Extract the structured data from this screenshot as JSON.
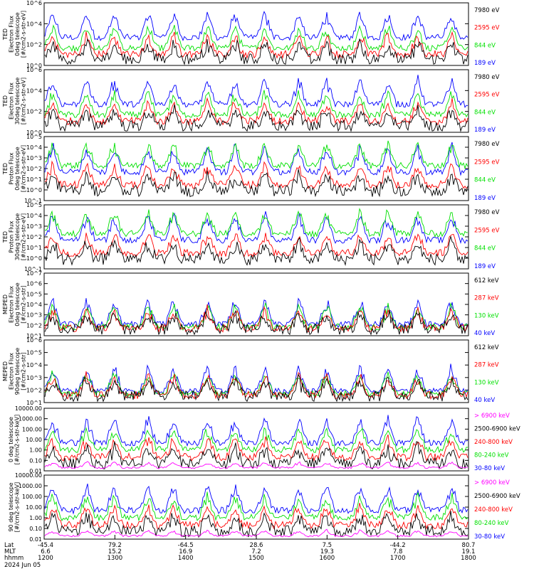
{
  "colors": {
    "blue": "#0000ff",
    "red": "#ff0000",
    "green": "#00e000",
    "black": "#000000",
    "magenta": "#ff00ff"
  },
  "chart_data": [
    {
      "type": "line",
      "ylabel_lines": [
        "TED",
        "Electron Flux",
        "0deg telescope",
        "[#/cm2-s-str-eV]"
      ],
      "ytick_labels": [
        "10^0",
        "10^2",
        "10^4",
        "10^6"
      ],
      "series": [
        {
          "name": "7980 eV",
          "color": "black"
        },
        {
          "name": "2595 eV",
          "color": "red"
        },
        {
          "name": "844 eV",
          "color": "green"
        },
        {
          "name": "189 eV",
          "color": "blue"
        }
      ]
    },
    {
      "type": "line",
      "ylabel_lines": [
        "TED",
        "Electron Flux",
        "30deg telescope",
        "[#/cm2-s-str-eV]"
      ],
      "ytick_labels": [
        "10^0",
        "10^2",
        "10^4",
        "10^6"
      ],
      "series": [
        {
          "name": "7980 eV",
          "color": "black"
        },
        {
          "name": "2595 eV",
          "color": "red"
        },
        {
          "name": "844 eV",
          "color": "green"
        },
        {
          "name": "189 eV",
          "color": "blue"
        }
      ]
    },
    {
      "type": "line",
      "ylabel_lines": [
        "TED",
        "Proton Flux",
        "0deg telescope",
        "[#/cm2-s-str-eV]"
      ],
      "ytick_labels": [
        "10^-1",
        "10^0",
        "10^1",
        "10^2",
        "10^3",
        "10^4",
        "10^5"
      ],
      "series": [
        {
          "name": "7980 eV",
          "color": "black"
        },
        {
          "name": "2595 eV",
          "color": "red"
        },
        {
          "name": "844 eV",
          "color": "green"
        },
        {
          "name": "189 eV",
          "color": "blue"
        }
      ]
    },
    {
      "type": "line",
      "ylabel_lines": [
        "TED",
        "Proton Flux",
        "30deg telescope",
        "[#/cm2-s-str-eV]"
      ],
      "ytick_labels": [
        "10^-1",
        "10^0",
        "10^1",
        "10^2",
        "10^3",
        "10^4",
        "10^5"
      ],
      "series": [
        {
          "name": "7980 eV",
          "color": "black"
        },
        {
          "name": "2595 eV",
          "color": "red"
        },
        {
          "name": "844 eV",
          "color": "green"
        },
        {
          "name": "189 eV",
          "color": "blue"
        }
      ]
    },
    {
      "type": "line",
      "ylabel_lines": [
        "MEPED",
        "Electron Flux",
        "0deg telescope",
        "[#/cm2-s-str]"
      ],
      "ytick_labels": [
        "10^1",
        "10^2",
        "10^3",
        "10^4",
        "10^5",
        "10^6",
        "10^7"
      ],
      "series": [
        {
          "name": "612 keV",
          "color": "black"
        },
        {
          "name": "287 keV",
          "color": "red"
        },
        {
          "name": "130 keV",
          "color": "green"
        },
        {
          "name": "40 keV",
          "color": "blue"
        }
      ]
    },
    {
      "type": "line",
      "ylabel_lines": [
        "MEPED",
        "Electron Flux",
        "90deg telescope",
        "[#/cm2-s-str]"
      ],
      "ytick_labels": [
        "10^1",
        "10^2",
        "10^3",
        "10^4",
        "10^5",
        "10^6"
      ],
      "series": [
        {
          "name": "612 keV",
          "color": "black"
        },
        {
          "name": "287 keV",
          "color": "red"
        },
        {
          "name": "130 keV",
          "color": "green"
        },
        {
          "name": "40 keV",
          "color": "blue"
        }
      ]
    },
    {
      "type": "line",
      "ylabel_lines": [
        "0 deg telescope",
        "[#/cm2-s-str-keV]"
      ],
      "ytick_labels": [
        "0.01",
        "0.10",
        "1.00",
        "10.00",
        "100.00",
        "1000.00",
        "10000.00"
      ],
      "series": [
        {
          "name": "> 6900 keV",
          "color": "magenta"
        },
        {
          "name": "2500-6900 keV",
          "color": "black"
        },
        {
          "name": "240-800 keV",
          "color": "red"
        },
        {
          "name": "80-240 keV",
          "color": "green"
        },
        {
          "name": "30-80 keV",
          "color": "blue"
        }
      ]
    },
    {
      "type": "line",
      "ylabel_lines": [
        "90 deg telescope",
        "[#/cm2-s-str-keV]"
      ],
      "ytick_labels": [
        "0.01",
        "0.10",
        "1.00",
        "10.00",
        "100.00",
        "1000.00",
        "10000.00"
      ],
      "series": [
        {
          "name": "> 6900 keV",
          "color": "magenta"
        },
        {
          "name": "2500-6900 keV",
          "color": "black"
        },
        {
          "name": "240-800 keV",
          "color": "red"
        },
        {
          "name": "80-240 keV",
          "color": "green"
        },
        {
          "name": "30-80 keV",
          "color": "blue"
        }
      ]
    }
  ],
  "x_axis": {
    "row_labels": [
      "Lat",
      "MLT",
      "hhmm",
      "2024 Jun 05"
    ],
    "ticks": [
      {
        "lat": "-45.4",
        "mlt": "6.6",
        "hhmm": "1200"
      },
      {
        "lat": "79.2",
        "mlt": "15.2",
        "hhmm": "1300"
      },
      {
        "lat": "-64.5",
        "mlt": "16.9",
        "hhmm": "1400"
      },
      {
        "lat": "28.6",
        "mlt": "7.2",
        "hhmm": "1500"
      },
      {
        "lat": "7.5",
        "mlt": "19.3",
        "hhmm": "1600"
      },
      {
        "lat": "-44.2",
        "mlt": "7.8",
        "hhmm": "1700"
      },
      {
        "lat": "80.7",
        "mlt": "19.1",
        "hhmm": "1800"
      }
    ]
  }
}
